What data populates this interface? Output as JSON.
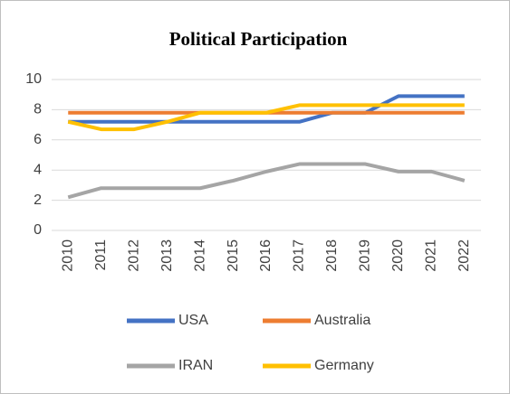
{
  "chart_data": {
    "type": "line",
    "title": "Political Participation",
    "categories": [
      "2010",
      "2011",
      "2012",
      "2013",
      "2014",
      "2015",
      "2016",
      "2017",
      "2018",
      "2019",
      "2020",
      "2021",
      "2022"
    ],
    "series": [
      {
        "name": "USA",
        "color": "#4472c4",
        "values": [
          7.2,
          7.2,
          7.2,
          7.2,
          7.2,
          7.2,
          7.2,
          7.2,
          7.8,
          7.8,
          8.9,
          8.9,
          8.9
        ]
      },
      {
        "name": "Australia",
        "color": "#ed7d31",
        "values": [
          7.8,
          7.8,
          7.8,
          7.8,
          7.8,
          7.8,
          7.8,
          7.8,
          7.8,
          7.8,
          7.8,
          7.8,
          7.8
        ]
      },
      {
        "name": "IRAN",
        "color": "#a5a5a5",
        "values": [
          2.2,
          2.8,
          2.8,
          2.8,
          2.8,
          3.3,
          3.9,
          4.4,
          4.4,
          4.4,
          3.9,
          3.9,
          3.3
        ]
      },
      {
        "name": "Germany",
        "color": "#ffc000",
        "values": [
          7.2,
          6.7,
          6.7,
          7.2,
          7.8,
          7.8,
          7.8,
          8.3,
          8.3,
          8.3,
          8.3,
          8.3,
          8.3
        ]
      }
    ],
    "ylim": [
      0,
      10
    ],
    "yticks": [
      0,
      2,
      4,
      6,
      8,
      10
    ],
    "grid": true,
    "legend": "bottom"
  }
}
